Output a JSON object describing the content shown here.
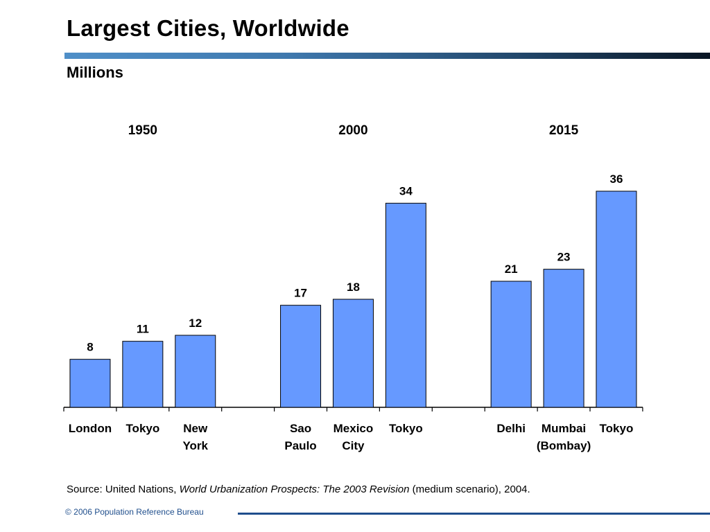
{
  "slide": {
    "title": "Largest Cities, Worldwide",
    "subtitle": "Millions"
  },
  "source": {
    "prefix": "Source: United Nations, ",
    "italic": "World Urbanization Prospects: The 2003 Revision",
    "suffix": " (medium scenario), 2004."
  },
  "footer": {
    "text": "© 2006 Population Reference Bureau"
  },
  "colors": {
    "bar_fill": "#6699ff",
    "title_rule_start": "#4f8fc8",
    "title_rule_end": "#0a1624",
    "footer_blue": "#1f4e8c"
  },
  "chart_data": {
    "type": "bar",
    "groups": [
      {
        "label": "1950",
        "categories": [
          [
            "London"
          ],
          [
            "Tokyo"
          ],
          [
            "New",
            "York"
          ]
        ],
        "values": [
          8,
          11,
          12
        ]
      },
      {
        "label": "2000",
        "categories": [
          [
            "Sao",
            "Paulo"
          ],
          [
            "Mexico",
            "City"
          ],
          [
            "Tokyo"
          ]
        ],
        "values": [
          17,
          18,
          34
        ]
      },
      {
        "label": "2015",
        "categories": [
          [
            "Delhi"
          ],
          [
            "Mumbai",
            "(Bombay)"
          ],
          [
            "Tokyo"
          ]
        ],
        "values": [
          21,
          23,
          36
        ]
      }
    ],
    "ylim": [
      0,
      36
    ],
    "data_labels": true,
    "grid": false,
    "legend": "none"
  }
}
